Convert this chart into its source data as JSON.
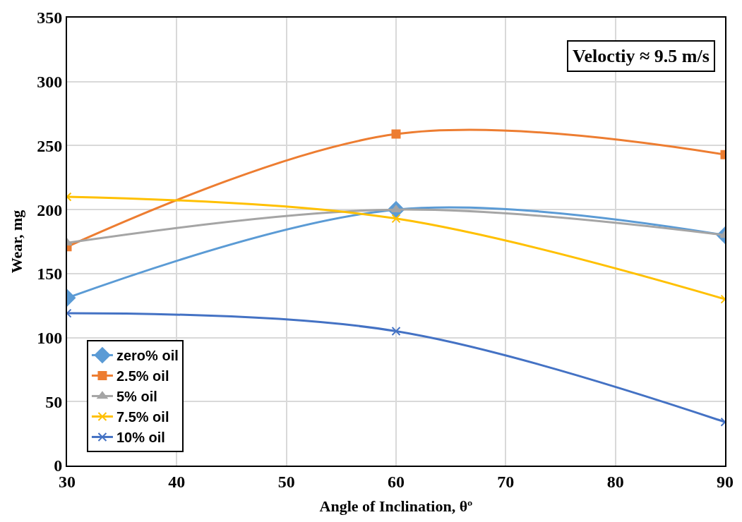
{
  "chart_data": {
    "type": "line",
    "xlabel": "Angle of Inclination, θº",
    "ylabel": "Wear, mg",
    "x": [
      30,
      60,
      90
    ],
    "series": [
      {
        "name": "zero% oil",
        "color": "#5b9bd5",
        "marker": "diamond",
        "values": [
          131,
          200,
          180
        ]
      },
      {
        "name": "2.5% oil",
        "color": "#ed7d31",
        "marker": "square",
        "values": [
          171,
          259,
          243
        ]
      },
      {
        "name": "5% oil",
        "color": "#a5a5a5",
        "marker": "triangle",
        "values": [
          174,
          200,
          180
        ]
      },
      {
        "name": "7.5% oil",
        "color": "#ffc000",
        "marker": "cross",
        "values": [
          210,
          193,
          130
        ]
      },
      {
        "name": "10% oil",
        "color": "#4472c4",
        "marker": "cross",
        "values": [
          119,
          105,
          34
        ]
      }
    ],
    "xlim": [
      30,
      90
    ],
    "xticks": [
      30,
      40,
      50,
      60,
      70,
      80,
      90
    ],
    "ylim": [
      0,
      350
    ],
    "yticks": [
      0,
      50,
      100,
      150,
      200,
      250,
      300,
      350
    ],
    "grid": true,
    "legend": "bottom left",
    "line_style": "solid",
    "annotations": [
      "Veloctiy ≈ 9.5 m/s"
    ]
  }
}
